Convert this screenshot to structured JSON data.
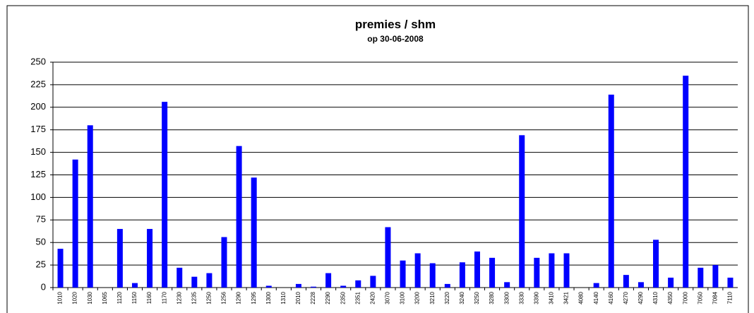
{
  "chart_data": {
    "type": "bar",
    "title": "premies / shm",
    "subtitle": "op 30-06-2008",
    "categories": [
      "1010",
      "1020",
      "1030",
      "1065",
      "1120",
      "1150",
      "1160",
      "1170",
      "1230",
      "1235",
      "1250",
      "1256",
      "1290",
      "1295",
      "1300",
      "1310",
      "2010",
      "2228",
      "2290",
      "2350",
      "2351",
      "2420",
      "3070",
      "3100",
      "3200",
      "3210",
      "3220",
      "3240",
      "3250",
      "3280",
      "3300",
      "3330",
      "3390",
      "3410",
      "3421",
      "4080",
      "4140",
      "4160",
      "4270",
      "4290",
      "4310",
      "4350",
      "7000",
      "7050",
      "7084",
      "7110"
    ],
    "values": [
      43,
      142,
      180,
      0,
      65,
      5,
      65,
      206,
      22,
      12,
      16,
      56,
      157,
      122,
      2,
      0,
      4,
      1,
      16,
      2,
      8,
      13,
      67,
      30,
      38,
      27,
      4,
      28,
      40,
      33,
      6,
      169,
      33,
      38,
      38,
      0,
      5,
      214,
      14,
      6,
      53,
      11,
      235,
      22,
      25,
      11
    ],
    "color": "#0000ff",
    "ylim": [
      0,
      250
    ],
    "yticks": [
      0,
      25,
      50,
      75,
      100,
      125,
      150,
      175,
      200,
      225,
      250
    ],
    "grid": true
  }
}
